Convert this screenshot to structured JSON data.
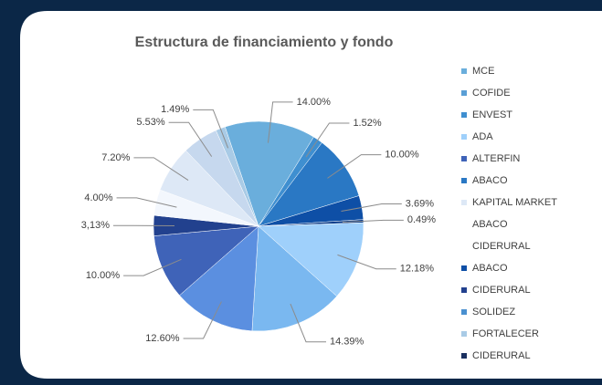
{
  "chart_data": {
    "type": "pie",
    "title": "Estructura de financiamiento y fondo",
    "values": [
      14.0,
      1.52,
      10.0,
      3.69,
      0.49,
      12.18,
      14.39,
      12.6,
      10.0,
      3.13,
      4.0,
      7.2,
      5.53,
      1.49
    ],
    "value_labels": [
      "14.00%",
      "1.52%",
      "10.00%",
      "3.69%",
      "0.49%",
      "12.18%",
      "14.39%",
      "12.60%",
      "10.00%",
      "3,13%",
      "4.00%",
      "7.20%",
      "5.53%",
      "1.49%"
    ],
    "colors": [
      "#6aaedc",
      "#3f8fd0",
      "#2a78c4",
      "#0e4fa6",
      "#0a3c8a",
      "#9fd0fb",
      "#7ab8f0",
      "#5b8fe0",
      "#3f63b8",
      "#22418e",
      "#f3f7fd",
      "#dde8f6",
      "#c6d8ee",
      "#a9cbe6"
    ],
    "legend": [
      {
        "name": "MCE",
        "color": "#6aaedc"
      },
      {
        "name": "COFIDE",
        "color": "#5a9fd6"
      },
      {
        "name": "ENVEST",
        "color": "#3f8fd0"
      },
      {
        "name": "ADA",
        "color": "#9fd0fb"
      },
      {
        "name": "ALTERFIN",
        "color": "#3f63b8"
      },
      {
        "name": "ABACO",
        "color": "#2a78c4"
      },
      {
        "name": "KAPITAL MARKET",
        "color": "#dde8f6"
      },
      {
        "name": "ABACO",
        "color": null
      },
      {
        "name": "CIDERURAL",
        "color": null
      },
      {
        "name": "ABACO",
        "color": "#0e4fa6"
      },
      {
        "name": "CIDERURAL",
        "color": "#22418e"
      },
      {
        "name": "SOLIDEZ",
        "color": "#4a90d0"
      },
      {
        "name": "FORTALECER",
        "color": "#a9cbe6"
      },
      {
        "name": "CIDERURAL",
        "color": "#1a3060"
      }
    ]
  }
}
